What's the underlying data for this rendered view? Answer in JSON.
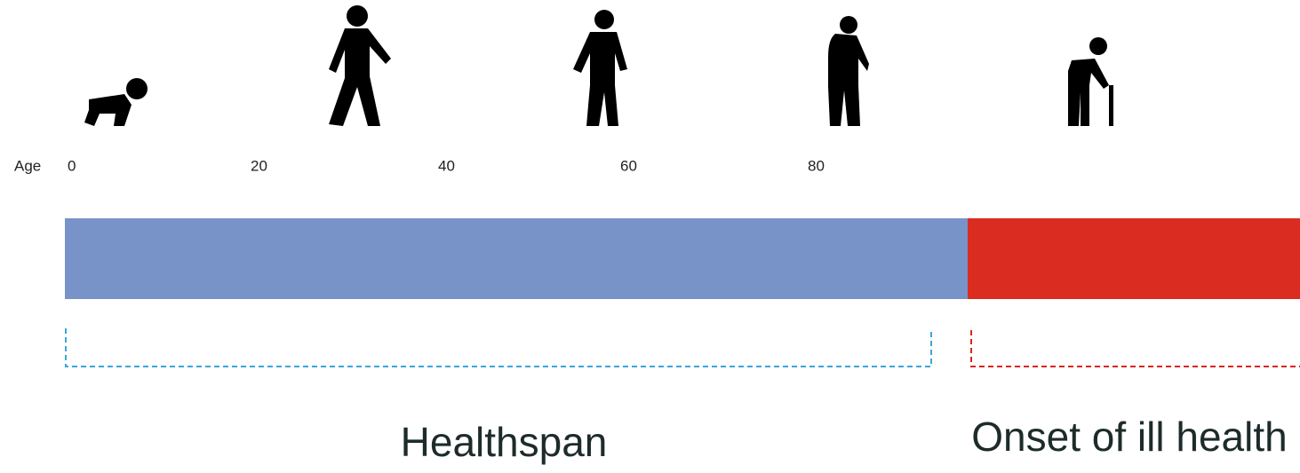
{
  "axis": {
    "label": "Age",
    "ticks": [
      0,
      20,
      40,
      60,
      80
    ]
  },
  "segments": [
    {
      "label": "Healthspan"
    },
    {
      "label": "Onset of ill health"
    }
  ]
}
